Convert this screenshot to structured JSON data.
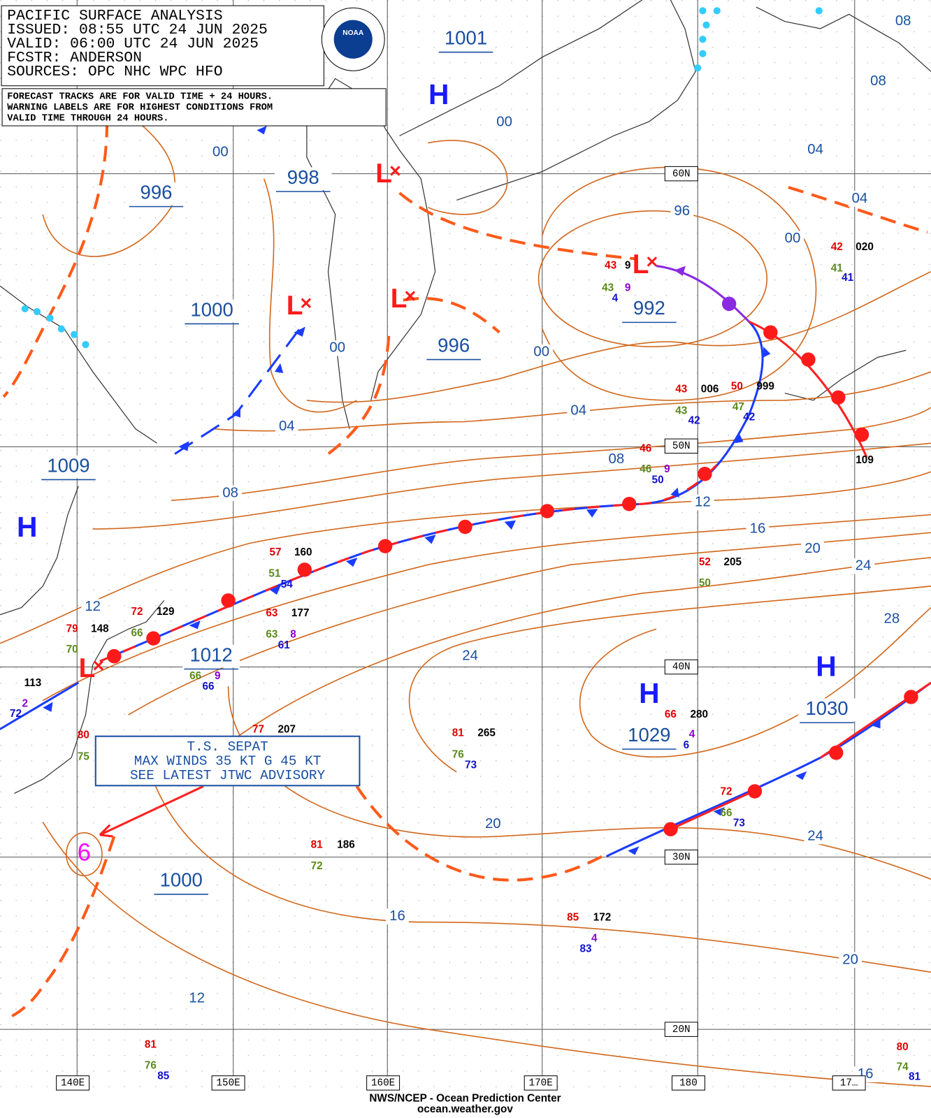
{
  "header": {
    "lines": [
      "PACIFIC SURFACE ANALYSIS",
      "ISSUED: 08:55 UTC 24 JUN 2025",
      "VALID:  06:00 UTC 24 JUN 2025",
      "FCSTR:  ANDERSON",
      "SOURCES: OPC NHC WPC HFO"
    ],
    "note": [
      "FORECAST TRACKS ARE FOR VALID TIME + 24 HOURS.",
      "WARNING LABELS ARE FOR HIGHEST CONDITIONS FROM",
      "VALID TIME THROUGH 24 HOURS."
    ],
    "logo": "NOAA"
  },
  "highs": [
    "H",
    "H",
    "H",
    "H"
  ],
  "lows": [
    "L",
    "L",
    "L",
    "L",
    "L"
  ],
  "pressure_labels": [
    "1001",
    "998",
    "996",
    "1000",
    "996",
    "992",
    "1009",
    "1012",
    "1029",
    "1030",
    "1000"
  ],
  "isobar_labels": [
    "00",
    "00",
    "04",
    "08",
    "08",
    "04",
    "96",
    "00",
    "00",
    "00",
    "04",
    "04",
    "08",
    "08",
    "12",
    "16",
    "20",
    "24",
    "28",
    "24",
    "12",
    "20",
    "24",
    "16",
    "20",
    "12",
    "16"
  ],
  "grid_labels": [
    "60N",
    "50N",
    "40N",
    "30N",
    "20N",
    "140E",
    "150E",
    "160E",
    "170E",
    "180",
    "17…"
  ],
  "station_labels": [
    "43",
    "9",
    "43",
    "9",
    "4",
    "42",
    "020",
    "41",
    "41",
    "43",
    "006",
    "43",
    "42",
    "50",
    "999",
    "47",
    "42",
    "46",
    "46",
    "9",
    "50",
    "109",
    "57",
    "160",
    "51",
    "54",
    "52",
    "205",
    "50",
    "72",
    "129",
    "66",
    "63",
    "177",
    "63",
    "8",
    "61",
    "79",
    "148",
    "70",
    "113",
    "2",
    "72",
    "66",
    "9",
    "66",
    "66",
    "280",
    "4",
    "6",
    "81",
    "265",
    "76",
    "73",
    "77",
    "207",
    "80",
    "75",
    "72",
    "66",
    "73",
    "81",
    "186",
    "72",
    "85",
    "172",
    "4",
    "83",
    "81",
    "76",
    "85",
    "80",
    "74",
    "81"
  ],
  "storm_box": [
    "T.S. SEPAT",
    "MAX WINDS 35 KT G 45 KT",
    "SEE LATEST JTWC ADVISORY"
  ],
  "footer": [
    "NWS/NCEP - Ocean Prediction Center",
    "ocean.weather.gov"
  ]
}
